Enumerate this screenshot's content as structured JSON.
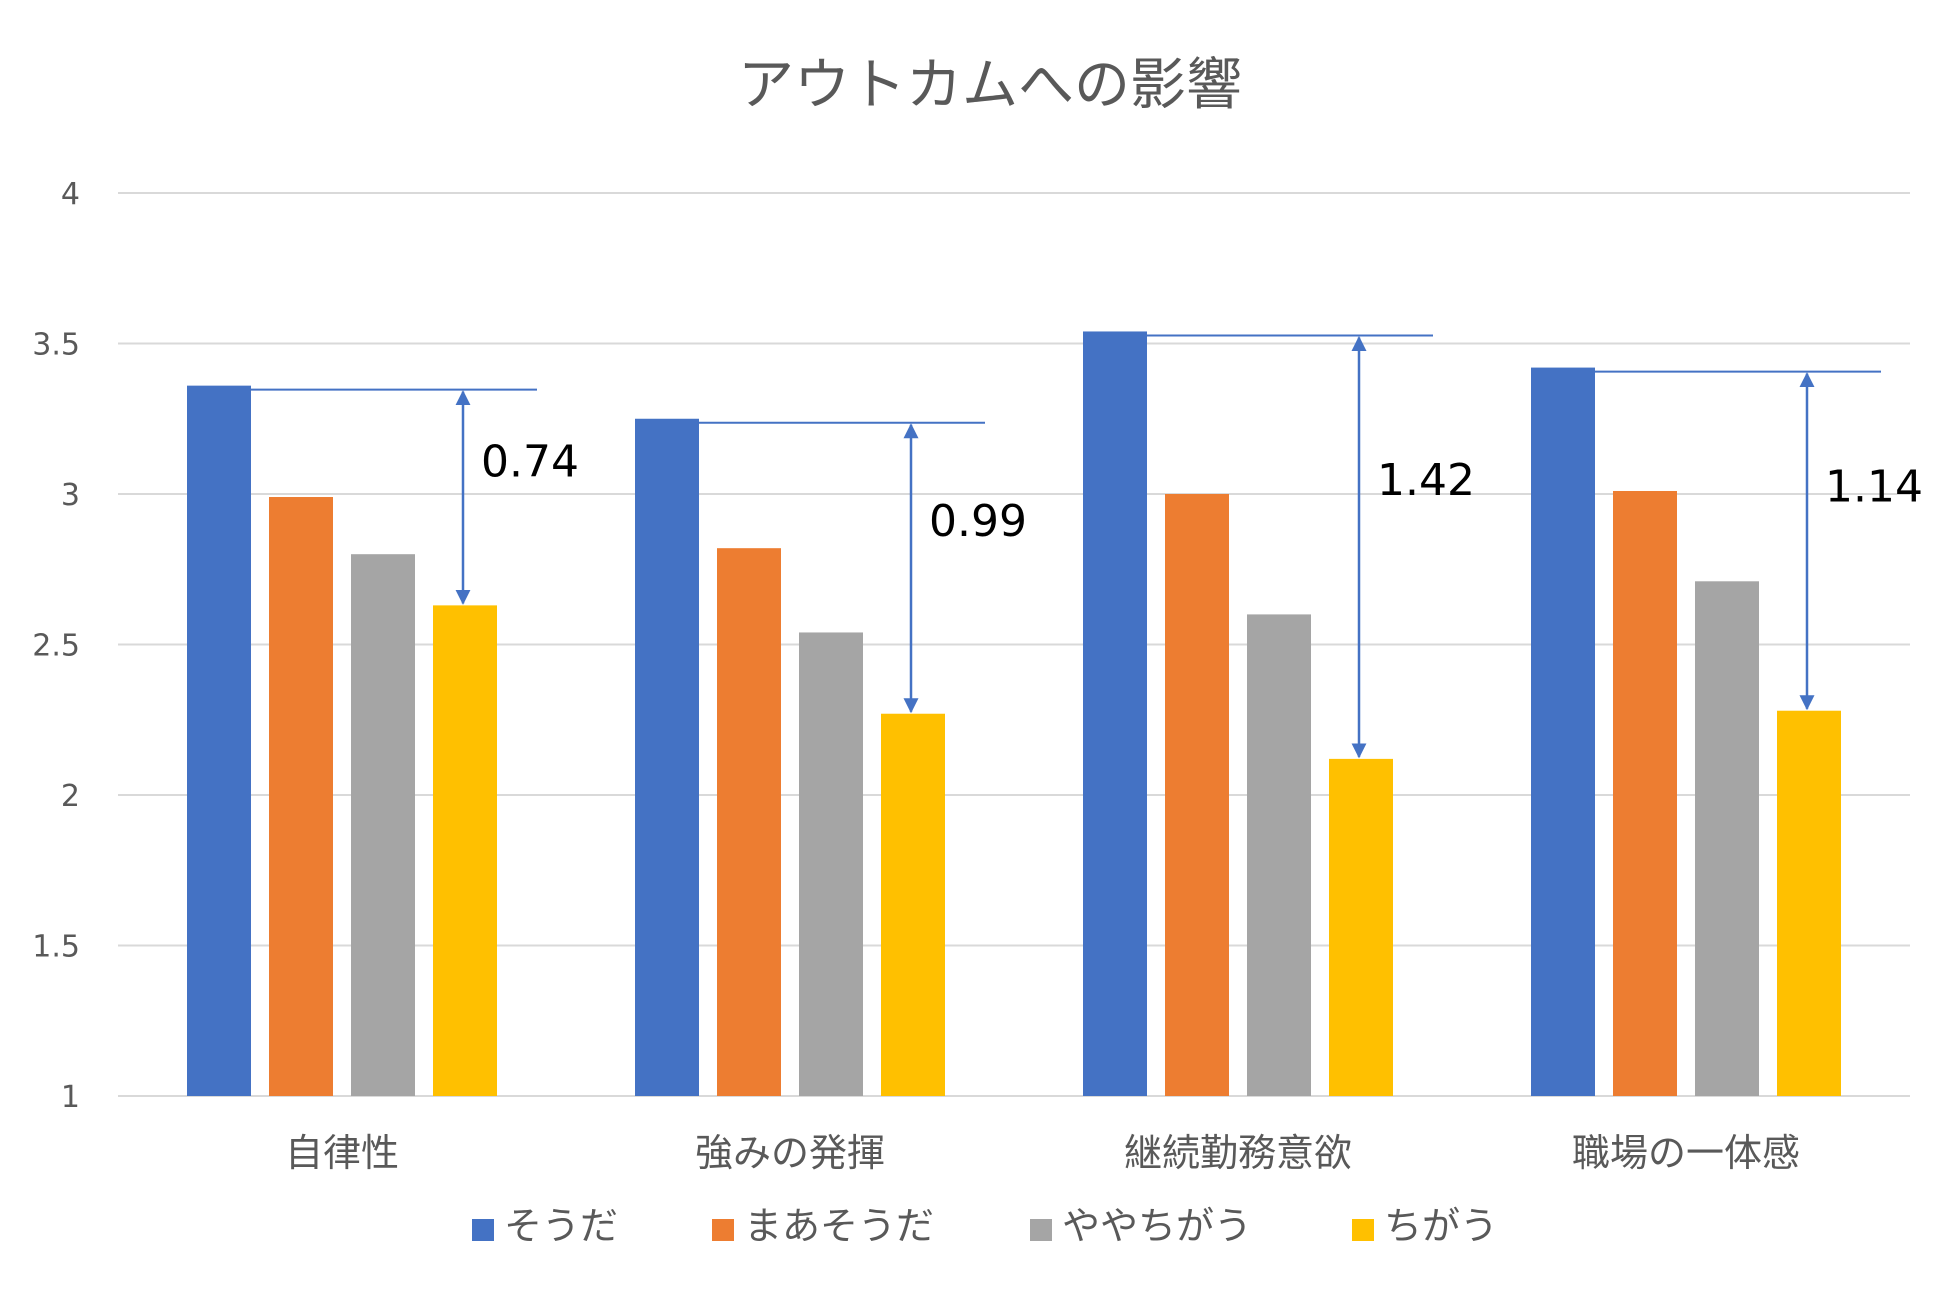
{
  "chart_data": {
    "type": "bar",
    "title": "アウトカムへの影響",
    "xlabel": "",
    "ylabel": "",
    "ylim": [
      1,
      4
    ],
    "yticks": [
      1,
      1.5,
      2,
      2.5,
      3,
      3.5,
      4
    ],
    "yticklabels": [
      "1",
      "1.5",
      "2",
      "2.5",
      "3",
      "3.5",
      "4"
    ],
    "grid": true,
    "legend": "bottom",
    "categories": [
      "自律性",
      "強みの発揮",
      "継続勤務意欲",
      "職場の一体感"
    ],
    "series": [
      {
        "name": "そうだ",
        "color": "#4472c4",
        "values": [
          3.36,
          3.25,
          3.54,
          3.42
        ]
      },
      {
        "name": "まあそうだ",
        "color": "#ed7d31",
        "values": [
          2.99,
          2.82,
          3.0,
          3.01
        ]
      },
      {
        "name": "ややちがう",
        "color": "#a5a5a5",
        "values": [
          2.8,
          2.54,
          2.6,
          2.71
        ]
      },
      {
        "name": "ちがう",
        "color": "#ffc000",
        "values": [
          2.63,
          2.27,
          2.12,
          2.28
        ]
      }
    ],
    "annotations": [
      {
        "category": "自律性",
        "label": "0.74"
      },
      {
        "category": "強みの発揮",
        "label": "0.99"
      },
      {
        "category": "継続勤務意欲",
        "label": "1.42"
      },
      {
        "category": "職場の一体感",
        "label": "1.14"
      }
    ],
    "annotation_color": "#4472c4"
  }
}
